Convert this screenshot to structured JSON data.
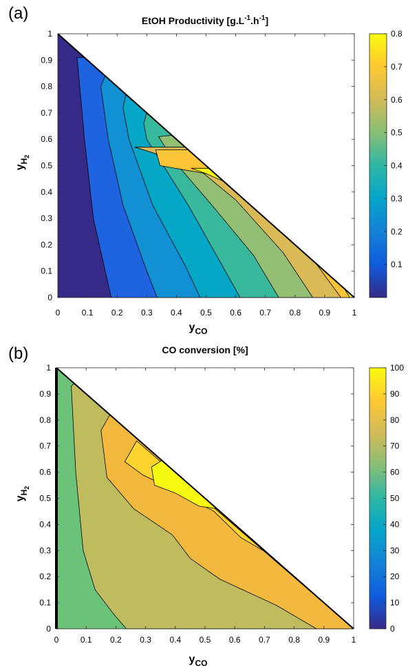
{
  "panels": [
    {
      "label": "(a)",
      "title_main": "EtOH Productivity [g.L",
      "title_sup1": "-1",
      "title_mid": ".h",
      "title_sup2": "-1",
      "title_end": "]",
      "xlabel_main": "y",
      "xlabel_sub": "CO",
      "ylabel_main": "y",
      "ylabel_sub": "H",
      "ylabel_subsub": "2"
    },
    {
      "label": "(b)",
      "title_main": "CO conversion [%]",
      "xlabel_main": "y",
      "xlabel_sub": "CO",
      "ylabel_main": "y",
      "ylabel_sub": "H",
      "ylabel_subsub": "2"
    }
  ],
  "chart_data": [
    {
      "type": "contour",
      "title": "EtOH Productivity [g.L-1.h-1]",
      "xlabel": "yCO",
      "ylabel": "yH2",
      "xlim": [
        0,
        1
      ],
      "ylim": [
        0,
        1
      ],
      "xticks": [
        "0",
        "0.1",
        "0.2",
        "0.3",
        "0.4",
        "0.5",
        "0.6",
        "0.7",
        "0.8",
        "0.9",
        "1"
      ],
      "yticks": [
        "0",
        "0.1",
        "0.2",
        "0.3",
        "0.4",
        "0.5",
        "0.6",
        "0.7",
        "0.8",
        "0.9",
        "1"
      ],
      "colorbar": {
        "range": [
          0,
          0.8
        ],
        "ticks": [
          "0.1",
          "0.2",
          "0.3",
          "0.4",
          "0.5",
          "0.6",
          "0.7",
          "0.8"
        ],
        "tick_values": [
          0.1,
          0.2,
          0.3,
          0.4,
          0.5,
          0.6,
          0.7,
          0.8
        ],
        "colormap": "parula"
      },
      "levels": [
        {
          "fill": "#352a87",
          "boundary": [
            [
              0.18,
              0
            ],
            [
              0.16,
              0.1
            ],
            [
              0.12,
              0.3
            ],
            [
              0.09,
              0.6
            ],
            [
              0.07,
              0.85
            ],
            [
              0.065,
              0.91
            ],
            [
              0.09,
              0.91
            ]
          ]
        },
        {
          "fill": "#1e64e0",
          "boundary": [
            [
              0.335,
              0
            ],
            [
              0.3,
              0.1
            ],
            [
              0.22,
              0.35
            ],
            [
              0.17,
              0.6
            ],
            [
              0.145,
              0.8
            ],
            [
              0.16,
              0.84
            ]
          ]
        },
        {
          "fill": "#1191d3",
          "boundary": [
            [
              0.48,
              0
            ],
            [
              0.43,
              0.12
            ],
            [
              0.32,
              0.35
            ],
            [
              0.24,
              0.6
            ],
            [
              0.22,
              0.72
            ],
            [
              0.23,
              0.77
            ]
          ]
        },
        {
          "fill": "#06a7c6",
          "boundary": [
            [
              0.615,
              0
            ],
            [
              0.54,
              0.15
            ],
            [
              0.44,
              0.35
            ],
            [
              0.3,
              0.6
            ],
            [
              0.29,
              0.66
            ],
            [
              0.3,
              0.7
            ]
          ]
        },
        {
          "fill": "#38b99e",
          "boundary": [
            [
              0.745,
              0
            ],
            [
              0.66,
              0.16
            ],
            [
              0.52,
              0.35
            ],
            [
              0.39,
              0.52
            ],
            [
              0.34,
              0.61
            ],
            [
              0.385,
              0.615
            ]
          ]
        },
        {
          "fill": "#92bf73",
          "boundary": [
            [
              0.86,
              0
            ],
            [
              0.76,
              0.17
            ],
            [
              0.6,
              0.37
            ],
            [
              0.46,
              0.5
            ],
            [
              0.26,
              0.57
            ],
            [
              0.43,
              0.57
            ]
          ]
        },
        {
          "fill": "#d9ba56",
          "boundary": [
            [
              0.955,
              0
            ],
            [
              0.85,
              0.16
            ],
            [
              0.67,
              0.36
            ],
            [
              0.55,
              0.46
            ],
            [
              0.345,
              0.5
            ],
            [
              0.33,
              0.56
            ],
            [
              0.44,
              0.56
            ]
          ]
        },
        {
          "fill": "#fcc538",
          "boundary": [
            [
              0.985,
              0
            ],
            [
              0.9,
              0.15
            ],
            [
              0.76,
              0.29
            ],
            [
              0.58,
              0.43
            ],
            [
              0.5,
              0.47
            ],
            [
              0.45,
              0.49
            ],
            [
              0.51,
              0.49
            ]
          ]
        },
        {
          "fill": "#f6f910",
          "boundary": []
        }
      ]
    },
    {
      "type": "contour",
      "title": "CO conversion [%]",
      "xlabel": "yCO",
      "ylabel": "yH2",
      "xlim": [
        0,
        1
      ],
      "ylim": [
        0,
        1
      ],
      "xticks": [
        "0",
        "0.1",
        "0.2",
        "0.3",
        "0.4",
        "0.5",
        "0.6",
        "0.7",
        "0.8",
        "0.9",
        "1"
      ],
      "yticks": [
        "0",
        "0.1",
        "0.2",
        "0.3",
        "0.4",
        "0.5",
        "0.6",
        "0.7",
        "0.8",
        "0.9",
        "1"
      ],
      "colorbar": {
        "range": [
          0,
          100
        ],
        "ticks": [
          "0",
          "10",
          "20",
          "30",
          "40",
          "50",
          "60",
          "70",
          "80",
          "90",
          "100"
        ],
        "tick_values": [
          0,
          10,
          20,
          30,
          40,
          50,
          60,
          70,
          80,
          90,
          100
        ],
        "colormap": "parula"
      },
      "levels": [
        {
          "fill": "#6cc278",
          "boundary": [
            [
              0.235,
              0
            ],
            [
              0.19,
              0.06
            ],
            [
              0.13,
              0.15
            ],
            [
              0.09,
              0.3
            ],
            [
              0.065,
              0.6
            ],
            [
              0.05,
              0.93
            ],
            [
              0.06,
              0.94
            ]
          ]
        },
        {
          "fill": "#bebc5e",
          "boundary": [
            [
              0.875,
              0
            ],
            [
              0.74,
              0.09
            ],
            [
              0.55,
              0.19
            ],
            [
              0.45,
              0.27
            ],
            [
              0.39,
              0.36
            ],
            [
              0.26,
              0.46
            ],
            [
              0.17,
              0.58
            ],
            [
              0.15,
              0.76
            ],
            [
              0.18,
              0.82
            ]
          ]
        },
        {
          "fill": "#f3b93f",
          "boundary": [
            [
              0.71,
              0.29
            ],
            [
              0.62,
              0.35
            ],
            [
              0.53,
              0.45
            ],
            [
              0.38,
              0.54
            ],
            [
              0.29,
              0.59
            ],
            [
              0.23,
              0.64
            ],
            [
              0.27,
              0.72
            ]
          ]
        },
        {
          "fill": "#fbd42f",
          "boundary": [
            [
              0.54,
              0.46
            ],
            [
              0.48,
              0.47
            ],
            [
              0.4,
              0.52
            ],
            [
              0.33,
              0.55
            ],
            [
              0.32,
              0.62
            ],
            [
              0.355,
              0.645
            ]
          ]
        },
        {
          "fill": "#f6f910",
          "boundary": []
        }
      ]
    }
  ]
}
